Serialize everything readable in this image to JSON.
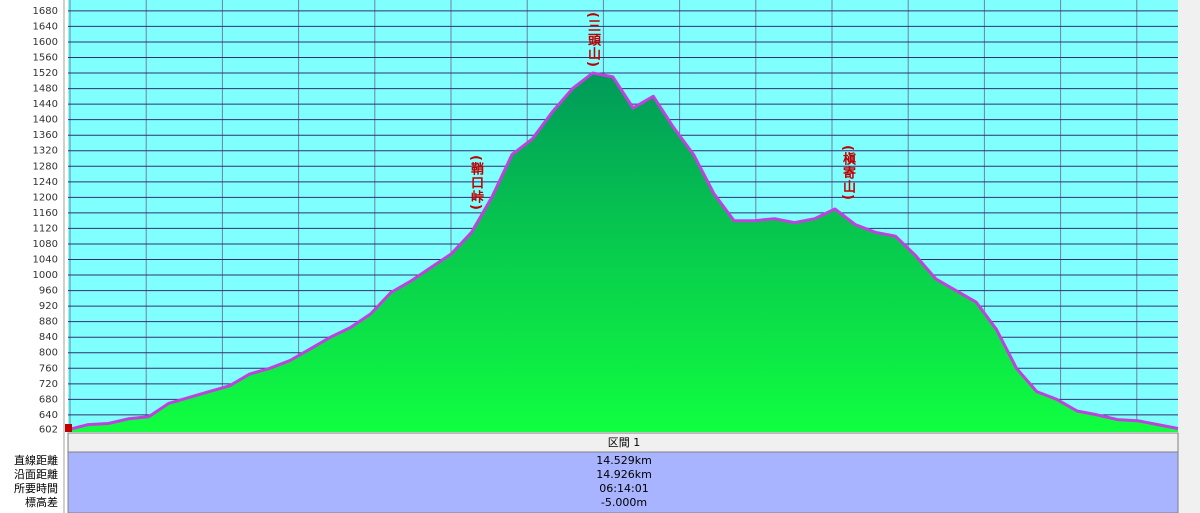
{
  "chart_data": {
    "type": "area",
    "values": [
      602,
      615,
      618,
      630,
      635,
      670,
      685,
      700,
      715,
      745,
      760,
      780,
      810,
      840,
      865,
      900,
      955,
      985,
      1020,
      1055,
      1110,
      1200,
      1310,
      1350,
      1420,
      1480,
      1520,
      1510,
      1430,
      1460,
      1380,
      1310,
      1210,
      1140,
      1140,
      1145,
      1135,
      1145,
      1170,
      1130,
      1110,
      1100,
      1050,
      990,
      960,
      930,
      860,
      760,
      700,
      680,
      650,
      640,
      628,
      625,
      615,
      605
    ],
    "color": "#c040e0",
    "ylim": [
      596,
      1708
    ],
    "yticks": [
      602,
      640,
      680,
      720,
      760,
      800,
      840,
      880,
      920,
      960,
      1000,
      1040,
      1080,
      1120,
      1160,
      1200,
      1240,
      1280,
      1320,
      1360,
      1400,
      1440,
      1480,
      1520,
      1560,
      1600,
      1640,
      1680
    ],
    "grid": true,
    "annotations": [
      "(鞘口峠)",
      "(三頭山)",
      "(槇寄山)"
    ]
  },
  "table": {
    "header": "区間 1",
    "rows": [
      [
        "直線距離",
        "14.529km"
      ],
      [
        "沿面距離",
        "14.926km"
      ],
      [
        "所要時間",
        "06:14:01"
      ],
      [
        "標高差",
        "-5.000m"
      ]
    ]
  }
}
